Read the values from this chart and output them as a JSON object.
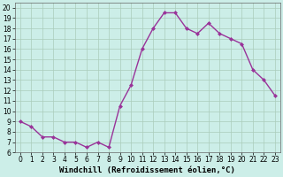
{
  "x": [
    0,
    1,
    2,
    3,
    4,
    5,
    6,
    7,
    8,
    9,
    10,
    11,
    12,
    13,
    14,
    15,
    16,
    17,
    18,
    19,
    20,
    21,
    22,
    23
  ],
  "y": [
    9.0,
    8.5,
    7.5,
    7.5,
    7.0,
    7.0,
    6.5,
    7.0,
    6.5,
    10.5,
    12.5,
    16.0,
    18.0,
    19.5,
    19.5,
    18.0,
    17.5,
    18.5,
    17.5,
    17.0,
    16.5,
    14.0,
    13.0,
    11.5
  ],
  "line_color": "#993399",
  "marker": "D",
  "marker_size": 2,
  "bg_color": "#cceee8",
  "grid_color": "#aaccbb",
  "xlabel": "Windchill (Refroidissement éolien,°C)",
  "ylim": [
    6,
    20.5
  ],
  "xlim": [
    -0.5,
    23.5
  ],
  "yticks": [
    6,
    7,
    8,
    9,
    10,
    11,
    12,
    13,
    14,
    15,
    16,
    17,
    18,
    19,
    20
  ],
  "xticks": [
    0,
    1,
    2,
    3,
    4,
    5,
    6,
    7,
    8,
    9,
    10,
    11,
    12,
    13,
    14,
    15,
    16,
    17,
    18,
    19,
    20,
    21,
    22,
    23
  ],
  "tick_fontsize": 5.5,
  "xlabel_fontsize": 6.5,
  "line_width": 1.0,
  "fig_width": 3.2,
  "fig_height": 2.0,
  "dpi": 100
}
